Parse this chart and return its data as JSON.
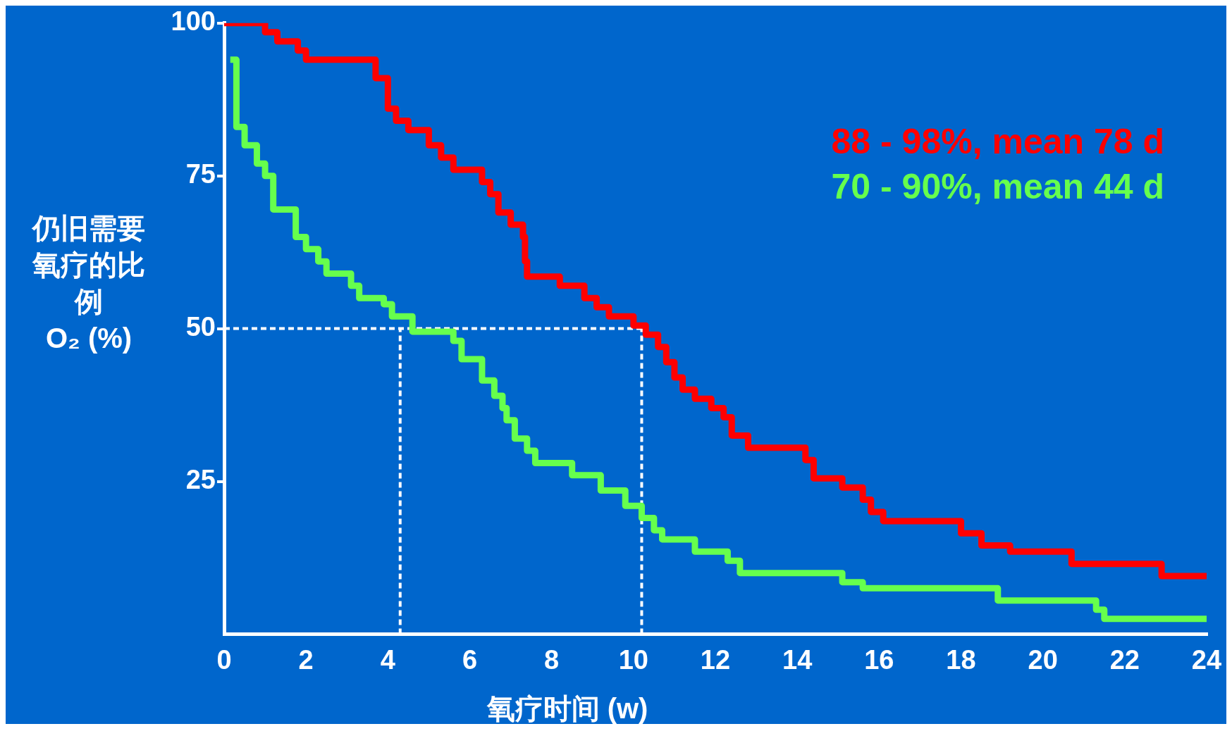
{
  "chart_data": {
    "type": "step",
    "xlabel": "氧疗时间 (w)",
    "ylabel": "仍旧需要氧疗的比例\nO₂ (%)",
    "xlim": [
      0,
      24
    ],
    "xticks": [
      0,
      2,
      4,
      6,
      8,
      10,
      12,
      14,
      16,
      18,
      20,
      22,
      24
    ],
    "ylim": [
      0,
      100
    ],
    "yticks": [
      25,
      50,
      75,
      100
    ],
    "grid": false,
    "legend": "top right",
    "marker": "none",
    "line_style": "solid",
    "series": [
      {
        "name": "88 - 98%, mean 78 d",
        "color": "#ff0000",
        "x": [
          0,
          1.0,
          1.3,
          1.8,
          2.0,
          3.7,
          4.0,
          4.2,
          4.5,
          5.0,
          5.3,
          5.6,
          6.3,
          6.5,
          6.7,
          7.0,
          7.3,
          7.35,
          7.4,
          8.2,
          8.8,
          9.1,
          9.4,
          10.0,
          10.3,
          10.6,
          10.8,
          11.0,
          11.2,
          11.5,
          11.9,
          12.2,
          12.4,
          12.8,
          14.2,
          14.4,
          15.1,
          15.6,
          15.8,
          16.1,
          18.0,
          18.5,
          19.2,
          20.7,
          22.9,
          24
        ],
        "values": [
          100,
          98.5,
          97,
          95.5,
          94,
          91,
          86,
          84,
          82.5,
          80,
          78,
          76,
          74,
          72,
          69,
          67,
          65,
          61,
          58.5,
          57,
          55,
          53.5,
          52,
          50.5,
          49,
          47,
          44.5,
          42,
          40,
          38.5,
          37,
          35.5,
          32.5,
          30.5,
          28.5,
          25.5,
          24,
          22,
          20,
          18.5,
          16.5,
          14.5,
          13.5,
          11.5,
          9.5,
          9.5
        ]
      },
      {
        "name": "70 - 90%, mean 44 d",
        "color": "#66ff4d",
        "x": [
          0.15,
          0.3,
          0.5,
          0.8,
          1.0,
          1.2,
          1.75,
          2.0,
          2.3,
          2.5,
          3.1,
          3.3,
          3.9,
          4.1,
          4.6,
          5.6,
          5.8,
          6.3,
          6.6,
          6.8,
          6.9,
          7.1,
          7.4,
          7.6,
          8.5,
          9.2,
          9.8,
          10.2,
          10.5,
          10.7,
          11.5,
          12.3,
          12.6,
          15.1,
          15.6,
          18.9,
          21.3,
          21.5,
          24
        ],
        "values": [
          94,
          83,
          80,
          77,
          75,
          69.5,
          65,
          63,
          61,
          59,
          57,
          55,
          54,
          52,
          49.5,
          48,
          45,
          41.5,
          39,
          37,
          35,
          32,
          30,
          28,
          26,
          23.5,
          21,
          19,
          17,
          15.5,
          13.5,
          12,
          10,
          8.5,
          7.5,
          5.5,
          4,
          2.5,
          2.5
        ]
      }
    ],
    "ref_lines": [
      {
        "axis": "y",
        "value": 50,
        "color": "#ffffff",
        "line_style": "dashed"
      },
      {
        "axis": "x",
        "value": 4.3,
        "color": "#ffffff",
        "line_style": "dashed"
      },
      {
        "axis": "x",
        "value": 10.2,
        "color": "#ffffff",
        "line_style": "dashed"
      }
    ]
  }
}
